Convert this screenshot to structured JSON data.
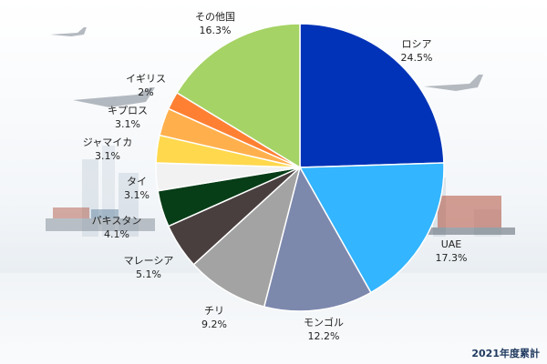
{
  "chart_data": {
    "type": "pie",
    "slices": [
      {
        "label": "ロシア",
        "value": 24.5,
        "value_label": "24.5%",
        "color": "#0033b8"
      },
      {
        "label": "UAE",
        "value": 17.3,
        "value_label": "17.3%",
        "color": "#33b5ff"
      },
      {
        "label": "モンゴル",
        "value": 12.2,
        "value_label": "12.2%",
        "color": "#7d88ad"
      },
      {
        "label": "チリ",
        "value": 9.2,
        "value_label": "9.2%",
        "color": "#a3a3a3"
      },
      {
        "label": "マレーシア",
        "value": 5.1,
        "value_label": "5.1%",
        "color": "#4a3f3f"
      },
      {
        "label": "パキスタン",
        "value": 4.1,
        "value_label": "4.1%",
        "color": "#073d17"
      },
      {
        "label": "タイ",
        "value": 3.1,
        "value_label": "3.1%",
        "color": "#f2f2f2"
      },
      {
        "label": "ジャマイカ",
        "value": 3.1,
        "value_label": "3.1%",
        "color": "#ffd84d"
      },
      {
        "label": "キプロス",
        "value": 3.1,
        "value_label": "3.1%",
        "color": "#ffb04d"
      },
      {
        "label": "イギリス",
        "value": 2.0,
        "value_label": "2%",
        "color": "#ff8033"
      },
      {
        "label": "その他国",
        "value": 16.3,
        "value_label": "16.3%",
        "color": "#a5d366"
      }
    ]
  },
  "footnote": "2021年度累計"
}
